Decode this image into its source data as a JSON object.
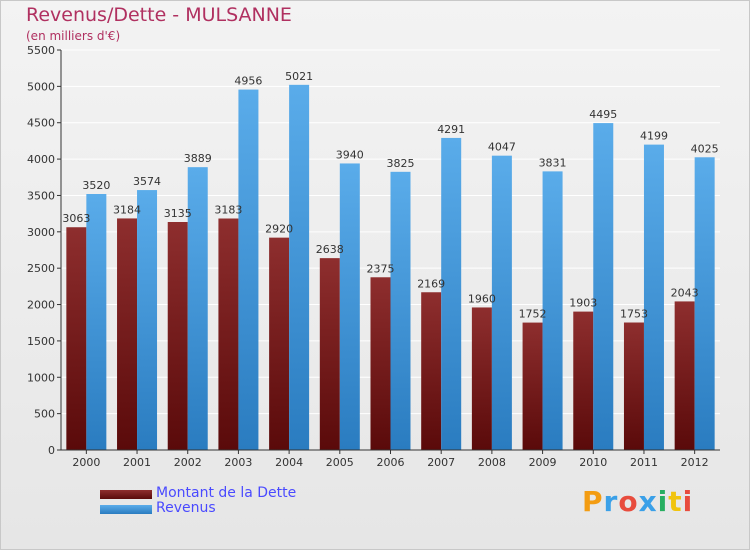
{
  "title": "Revenus/Dette - MULSANNE",
  "subtitle": "(en milliers d'€)",
  "brand": "Proxiti",
  "colors": {
    "title": "#b03060",
    "dette": "#7a1a1a",
    "revenus": "#3e9ae0",
    "legend_text": "#4a4aff"
  },
  "chart_data": {
    "type": "bar",
    "title": "Revenus/Dette - MULSANNE",
    "ylabel": "(en milliers d'€)",
    "xlabel": "",
    "ylim": [
      0,
      5500
    ],
    "yticks": [
      0,
      500,
      1000,
      1500,
      2000,
      2500,
      3000,
      3500,
      4000,
      4500,
      5000,
      5500
    ],
    "grid": true,
    "legend_position": "bottom-left",
    "categories": [
      "2000",
      "2001",
      "2002",
      "2003",
      "2004",
      "2005",
      "2006",
      "2007",
      "2008",
      "2009",
      "2010",
      "2011",
      "2012"
    ],
    "series": [
      {
        "name": "Montant de la Dette",
        "color": "#7a1a1a",
        "values": [
          3063,
          3184,
          3135,
          3183,
          2920,
          2638,
          2375,
          2169,
          1960,
          1752,
          1903,
          1753,
          2043
        ]
      },
      {
        "name": "Revenus",
        "color": "#3e9ae0",
        "values": [
          3520,
          3574,
          3889,
          4956,
          5021,
          3940,
          3825,
          4291,
          4047,
          3831,
          4495,
          4199,
          4025
        ]
      }
    ]
  }
}
